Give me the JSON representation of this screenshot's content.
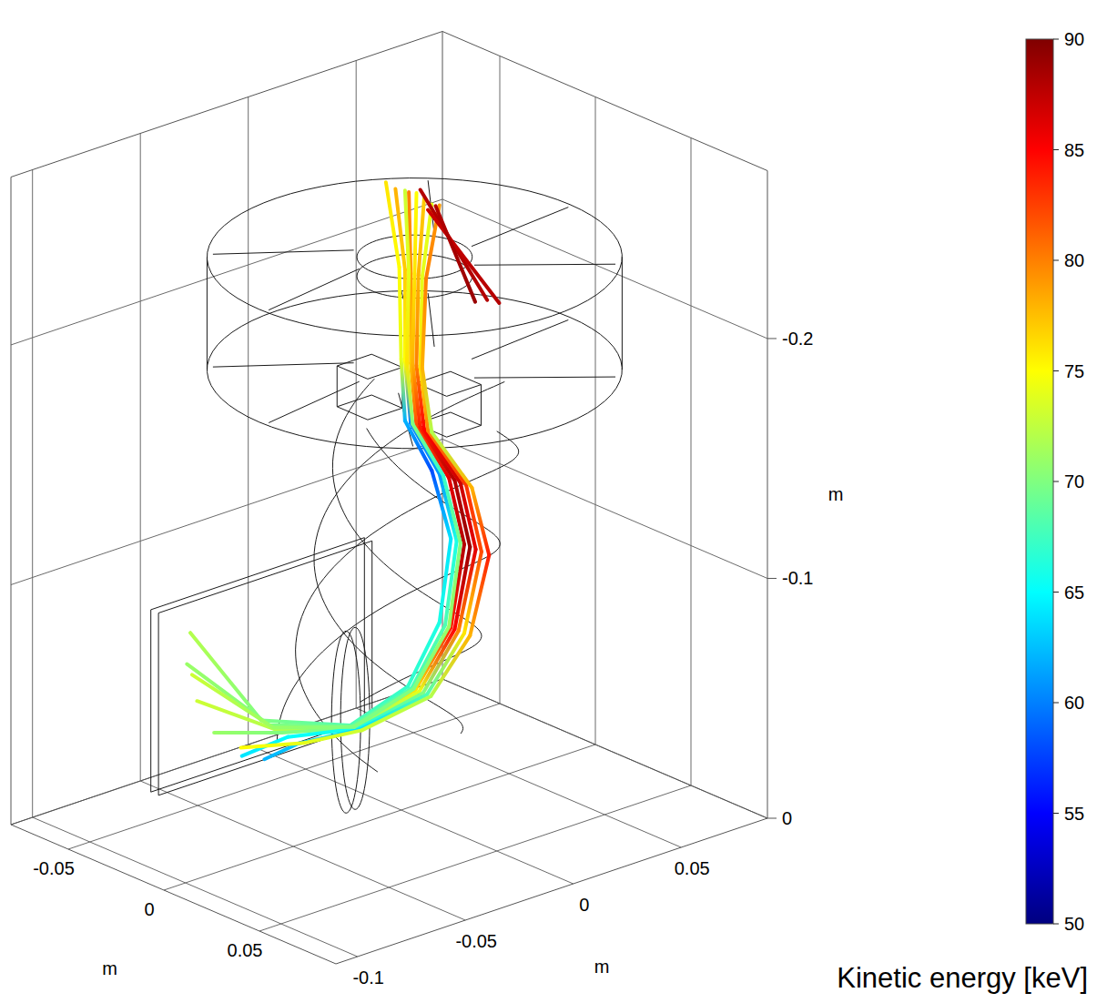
{
  "chart_data": {
    "type": "trajectory3d",
    "xlabel": "m",
    "ylabel": "m",
    "zlabel": "m",
    "xlim": [
      -0.08,
      0.09
    ],
    "xticks": [
      -0.05,
      0,
      0.05
    ],
    "ylim": [
      -0.11,
      0.09
    ],
    "yticks": [
      -0.1,
      -0.05,
      0,
      0.05
    ],
    "zlim": [
      -0.27,
      0
    ],
    "zticks": [
      -0.2,
      -0.1,
      0
    ],
    "grid": true,
    "color_label": "Kinetic energy [keV]",
    "color_range": [
      50,
      90
    ],
    "color_ticks": [
      50,
      55,
      60,
      65,
      70,
      75,
      80,
      85,
      90
    ],
    "series": [
      {
        "x": [
          -0.008,
          -0.001,
          0.0,
          0.002,
          0.016,
          0.026,
          0.02,
          -0.001,
          -0.004,
          -0.028,
          -0.055
        ],
        "y": [
          0,
          0,
          0,
          0,
          0,
          0,
          0,
          0.004,
          -0.02,
          -0.04,
          -0.049
        ],
        "z": [
          -0.259,
          -0.226,
          -0.188,
          -0.163,
          -0.147,
          -0.122,
          -0.085,
          -0.05,
          -0.04,
          -0.04,
          -0.07
        ],
        "energy": [
          76,
          75,
          74,
          62,
          58,
          64,
          66,
          67,
          68,
          70,
          72
        ]
      },
      {
        "x": [
          -0.003,
          0.002,
          0.002,
          0.005,
          0.02,
          0.029,
          0.023,
          0.001,
          -0.003,
          -0.026,
          -0.059
        ],
        "y": [
          0,
          0,
          0,
          0,
          0,
          0,
          0,
          0.004,
          -0.02,
          -0.038,
          -0.047
        ],
        "z": [
          -0.258,
          -0.226,
          -0.188,
          -0.163,
          -0.147,
          -0.122,
          -0.085,
          -0.05,
          -0.04,
          -0.038,
          -0.055
        ],
        "energy": [
          78,
          77,
          75,
          60,
          61,
          66,
          68,
          68,
          69,
          70,
          71
        ]
      },
      {
        "x": [
          0.004,
          0.005,
          0.005,
          0.008,
          0.025,
          0.033,
          0.026,
          0.003,
          -0.002,
          -0.024,
          -0.056
        ],
        "y": [
          0,
          0,
          0,
          0,
          0,
          0,
          0,
          0.004,
          -0.02,
          -0.036,
          -0.045
        ],
        "z": [
          -0.259,
          -0.226,
          -0.188,
          -0.163,
          -0.147,
          -0.122,
          -0.085,
          -0.05,
          -0.04,
          -0.036,
          -0.04
        ],
        "energy": [
          80,
          79,
          77,
          82,
          86,
          88,
          84,
          76,
          72,
          72,
          73
        ]
      },
      {
        "x": [
          0.008,
          0.007,
          0.006,
          0.01,
          0.028,
          0.036,
          0.028,
          0.005,
          -0.001,
          -0.023,
          -0.055
        ],
        "y": [
          0,
          0,
          0,
          0,
          0,
          0,
          0,
          0.004,
          -0.02,
          -0.035,
          -0.038
        ],
        "z": [
          -0.26,
          -0.226,
          -0.188,
          -0.163,
          -0.147,
          -0.122,
          -0.085,
          -0.05,
          -0.04,
          -0.035,
          -0.025
        ],
        "energy": [
          75,
          76,
          78,
          84,
          88,
          89,
          85,
          74,
          70,
          70,
          71
        ]
      },
      {
        "x": [
          0.012,
          0.009,
          0.008,
          0.012,
          0.031,
          0.039,
          0.03,
          0.007,
          0.0,
          -0.022,
          -0.054
        ],
        "y": [
          0,
          0,
          0,
          0,
          0,
          0,
          0,
          0.004,
          -0.02,
          -0.033,
          -0.026
        ],
        "z": [
          -0.259,
          -0.226,
          -0.188,
          -0.163,
          -0.147,
          -0.122,
          -0.085,
          -0.05,
          -0.04,
          -0.033,
          -0.012
        ],
        "energy": [
          77,
          78,
          80,
          85,
          87,
          86,
          80,
          70,
          66,
          65,
          64
        ]
      },
      {
        "x": [
          0.016,
          0.011,
          0.01,
          0.014,
          0.034,
          0.042,
          0.033,
          0.009,
          0.001,
          -0.02,
          -0.058
        ],
        "y": [
          0,
          0,
          0,
          0,
          0,
          0,
          0,
          0.004,
          -0.02,
          -0.03,
          -0.012
        ],
        "z": [
          -0.258,
          -0.226,
          -0.188,
          -0.163,
          -0.147,
          -0.122,
          -0.085,
          -0.05,
          -0.04,
          -0.03,
          -0.005
        ],
        "energy": [
          74,
          74,
          76,
          80,
          83,
          82,
          76,
          68,
          64,
          63,
          62
        ]
      },
      {
        "x": [
          0.02,
          0.013,
          0.011,
          0.016,
          0.037,
          0.046,
          0.036,
          0.011,
          0.002,
          -0.019,
          -0.05
        ],
        "y": [
          0,
          0,
          0,
          0,
          0,
          0,
          0,
          0.004,
          -0.02,
          -0.028,
          -0.03
        ],
        "z": [
          -0.259,
          -0.226,
          -0.188,
          -0.163,
          -0.147,
          -0.122,
          -0.085,
          -0.05,
          -0.04,
          -0.03,
          -0.018
        ],
        "energy": [
          79,
          80,
          78,
          72,
          78,
          84,
          78,
          72,
          73,
          74,
          75
        ]
      },
      {
        "x": [
          0.002,
          0.004,
          0.003,
          0.006,
          0.022,
          0.031,
          0.025,
          0.002,
          -0.002,
          -0.025,
          -0.062
        ],
        "y": [
          0,
          0,
          0,
          0,
          0,
          0,
          0,
          0.004,
          -0.02,
          -0.037,
          -0.042
        ],
        "z": [
          -0.259,
          -0.226,
          -0.188,
          -0.163,
          -0.147,
          -0.122,
          -0.085,
          -0.05,
          -0.04,
          -0.037,
          -0.048
        ],
        "energy": [
          73,
          74,
          76,
          70,
          67,
          70,
          71,
          70,
          70,
          71,
          73
        ]
      },
      {
        "x": [
          0.01,
          0.045
        ],
        "y": [
          0,
          0
        ],
        "z": [
          -0.262,
          -0.228
        ],
        "energy": [
          88,
          88
        ]
      },
      {
        "x": [
          0.014,
          0.04
        ],
        "y": [
          0,
          0.01
        ],
        "z": [
          -0.255,
          -0.222
        ],
        "energy": [
          87,
          88
        ]
      },
      {
        "x": [
          0.018,
          0.05
        ],
        "y": [
          0,
          -0.01
        ],
        "z": [
          -0.258,
          -0.232
        ],
        "energy": [
          88,
          89
        ]
      }
    ]
  }
}
